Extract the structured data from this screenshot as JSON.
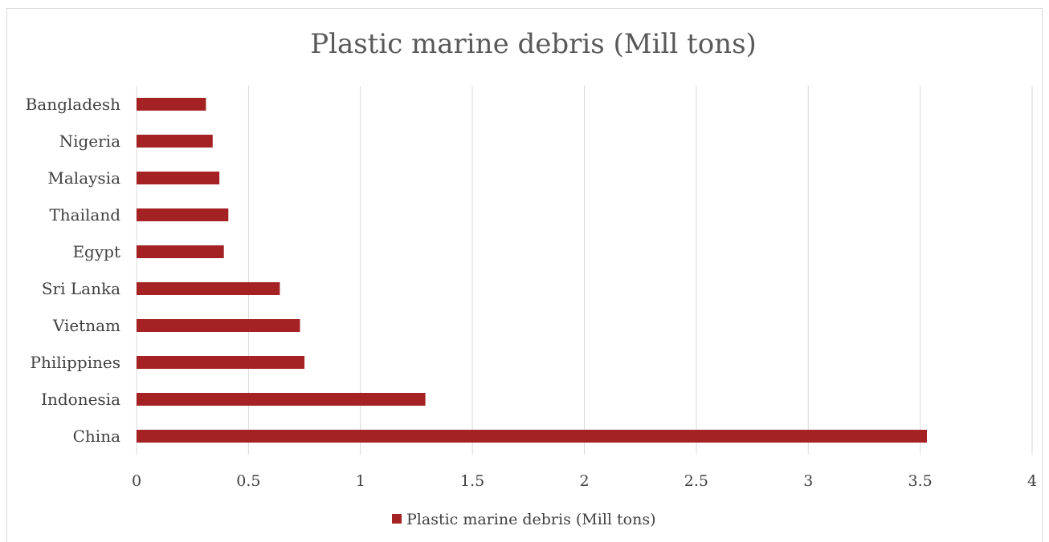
{
  "chart_data": {
    "type": "bar",
    "orientation": "horizontal",
    "title": "Plastic marine debris (Mill tons)",
    "categories": [
      "China",
      "Indonesia",
      "Philippines",
      "Vietnam",
      "Sri Lanka",
      "Egypt",
      "Thailand",
      "Malaysia",
      "Nigeria",
      "Bangladesh"
    ],
    "series": [
      {
        "name": "Plastic marine debris (Mill tons)",
        "values": [
          3.53,
          1.29,
          0.75,
          0.73,
          0.64,
          0.39,
          0.41,
          0.37,
          0.34,
          0.31
        ],
        "color": "#a52224"
      }
    ],
    "xlim": [
      0,
      4
    ],
    "xticks": [
      "0",
      "0.5",
      "1",
      "1.5",
      "2",
      "2.5",
      "3",
      "3.5",
      "4"
    ],
    "grid": true,
    "legend": "bottom",
    "gridColor": "#d9d9d9"
  }
}
